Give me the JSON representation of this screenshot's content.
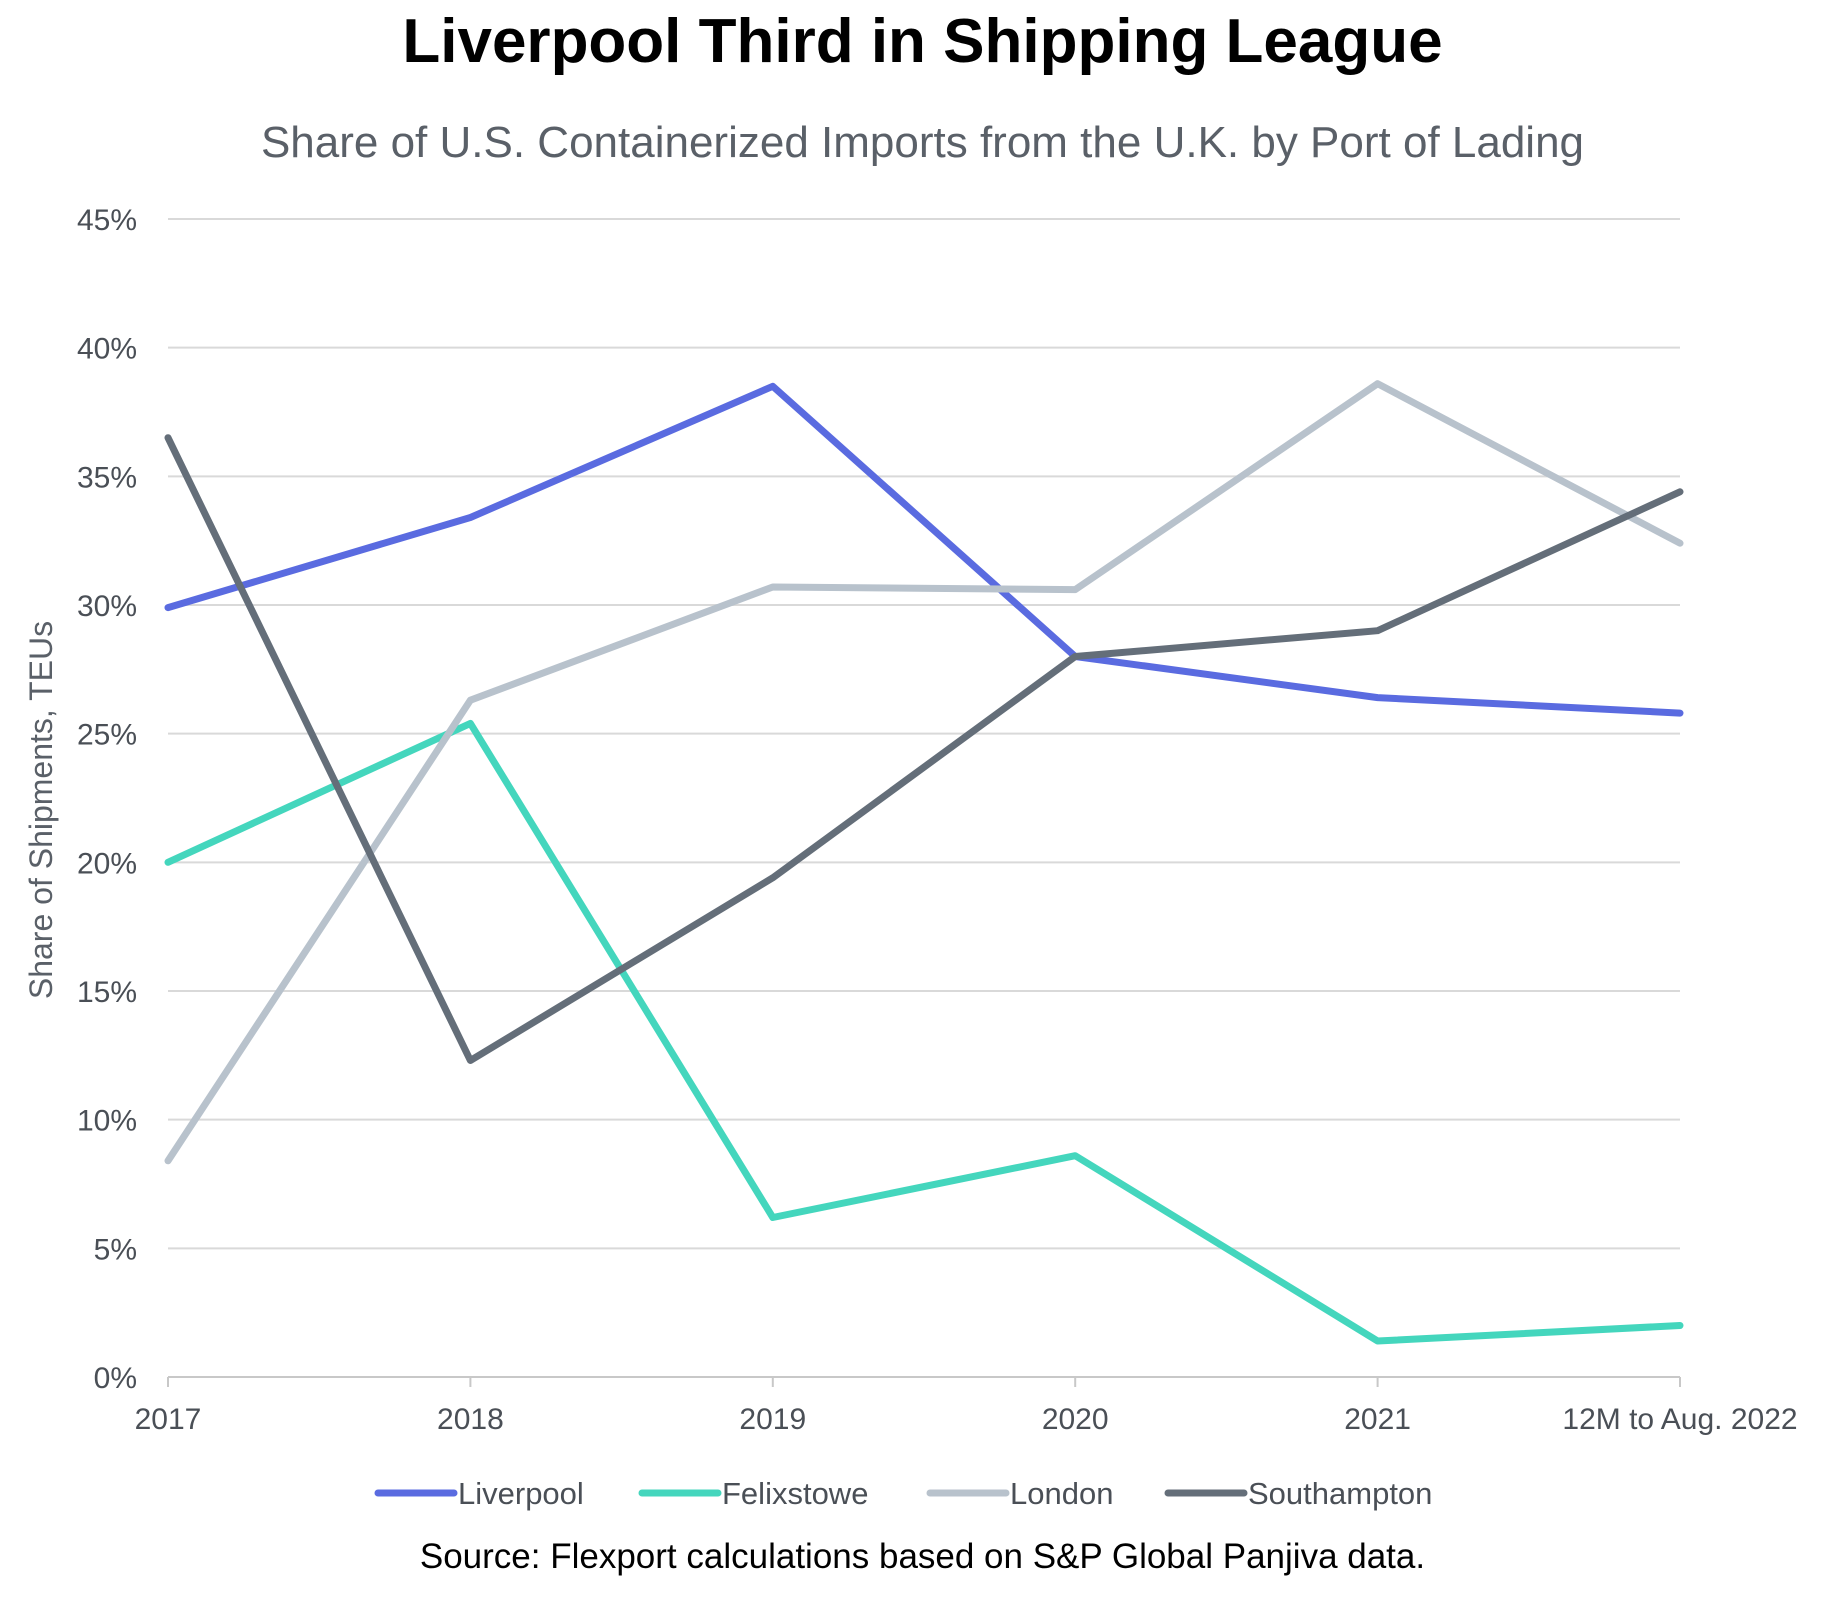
{
  "chart_data": {
    "type": "line",
    "title": "Liverpool Third in Shipping League",
    "subtitle": "Share of U.S. Containerized Imports from the U.K. by Port of Lading",
    "ylabel": "Share of Shipments, TEUs",
    "xlabel": "",
    "categories": [
      "2017",
      "2018",
      "2019",
      "2020",
      "2021",
      "12M to Aug. 2022"
    ],
    "yticks": [
      "0%",
      "5%",
      "10%",
      "15%",
      "20%",
      "25%",
      "30%",
      "35%",
      "40%",
      "45%"
    ],
    "ylim": [
      0,
      45
    ],
    "grid": true,
    "legend_position": "bottom",
    "series": [
      {
        "name": "Liverpool",
        "color": "#5a6be0",
        "values": [
          29.9,
          33.4,
          38.5,
          28.0,
          26.4,
          25.8
        ]
      },
      {
        "name": "Felixstowe",
        "color": "#44d6bd",
        "values": [
          20.0,
          25.4,
          6.2,
          8.6,
          1.4,
          2.0
        ]
      },
      {
        "name": "London",
        "color": "#b8c2cc",
        "values": [
          8.4,
          26.3,
          30.7,
          30.6,
          38.6,
          32.4
        ]
      },
      {
        "name": "Southampton",
        "color": "#646e79",
        "values": [
          36.5,
          12.3,
          19.4,
          28.0,
          29.0,
          34.4
        ]
      }
    ],
    "source": "Source: Flexport calculations based on S&P Global Panjiva data."
  }
}
